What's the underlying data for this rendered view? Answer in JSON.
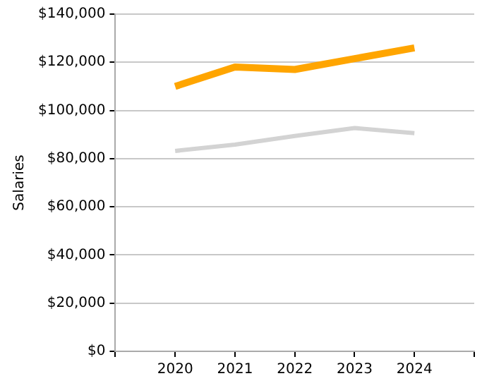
{
  "chart_data": {
    "type": "line",
    "ylabel": "Salaries",
    "x": [
      2020,
      2021,
      2022,
      2023,
      2024
    ],
    "xlim": [
      2019,
      2025
    ],
    "xticks": [
      {
        "value": 2019,
        "label": null
      },
      2020,
      2021,
      2022,
      2023,
      2024,
      {
        "value": 2025,
        "label": null
      }
    ],
    "ylim": [
      0,
      140000
    ],
    "yticks": [
      {
        "value": 0,
        "label": "$0"
      },
      {
        "value": 20000,
        "label": "$20,000"
      },
      {
        "value": 40000,
        "label": "$40,000"
      },
      {
        "value": 60000,
        "label": "$60,000"
      },
      {
        "value": 80000,
        "label": "$80,000"
      },
      {
        "value": 100000,
        "label": "$100,000"
      },
      {
        "value": 120000,
        "label": "$120,000"
      },
      {
        "value": 140000,
        "label": "$140,000"
      }
    ],
    "grid": "y",
    "legend": false,
    "marker": "none",
    "series": [
      {
        "color": "#ffa500",
        "values": [
          110000,
          118000,
          117000,
          121500,
          126000
        ]
      },
      {
        "color": "#d3d3d3",
        "values": [
          83200,
          85800,
          89400,
          92700,
          90600
        ]
      }
    ]
  }
}
